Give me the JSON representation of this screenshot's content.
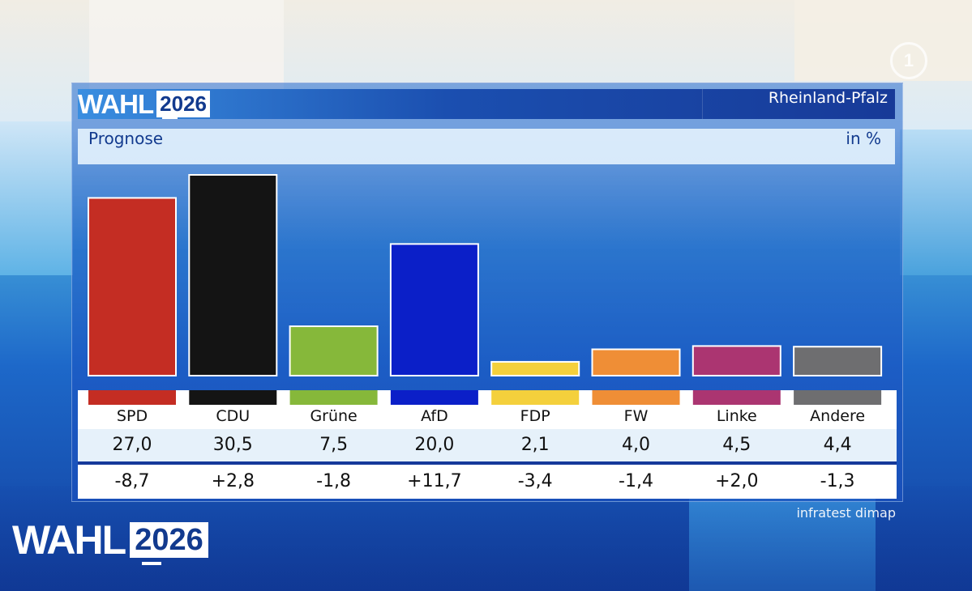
{
  "header": {
    "wahl_text": "WAHL",
    "year": "2026",
    "region": "Rheinland-Pfalz",
    "subtitle": "Prognose",
    "unit": "in %"
  },
  "brand": {
    "logo_glyph": "1"
  },
  "footer": {
    "source": "infratest dimap",
    "wahl_text": "WAHL",
    "year": "2026"
  },
  "chart_data": {
    "type": "bar",
    "title": "Prognose",
    "ylabel": "in %",
    "categories": [
      "SPD",
      "CDU",
      "Grüne",
      "AfD",
      "FDP",
      "FW",
      "Linke",
      "Andere"
    ],
    "values": [
      27.0,
      30.5,
      7.5,
      20.0,
      2.1,
      4.0,
      4.5,
      4.4
    ],
    "value_labels": [
      "27,0",
      "30,5",
      "7,5",
      "20,0",
      "2,1",
      "4,0",
      "4,5",
      "4,4"
    ],
    "change_labels": [
      "-8,7",
      "+2,8",
      "-1,8",
      "+11,7",
      "-3,4",
      "-1,4",
      "+2,0",
      "-1,3"
    ],
    "changes": [
      -8.7,
      2.8,
      -1.8,
      11.7,
      -3.4,
      -1.4,
      2.0,
      -1.3
    ],
    "colors": [
      "#c42d23",
      "#141414",
      "#86b83a",
      "#0b1fc8",
      "#f4d03c",
      "#ef8e36",
      "#ab3571",
      "#6e6e70"
    ],
    "ylim": [
      0,
      30.5
    ]
  }
}
